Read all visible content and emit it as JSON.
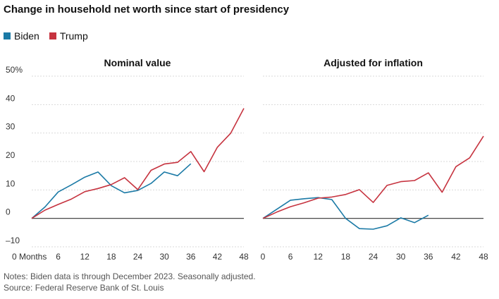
{
  "title": "Change in household net worth since start of presidency",
  "legend": [
    {
      "name": "Biden",
      "color": "#1b7aa6"
    },
    {
      "name": "Trump",
      "color": "#c6333f"
    }
  ],
  "notes": "Notes: Biden data is through December 2023. Seasonally adjusted.",
  "source": "Source: Federal Reserve Bank of St. Louis",
  "chart_data": [
    {
      "type": "line",
      "title": "Nominal value",
      "xlabel": "",
      "ylabel": "",
      "x_ticks": [
        "0 Months",
        "6",
        "12",
        "18",
        "24",
        "30",
        "36",
        "42",
        "48"
      ],
      "y_ticks": [
        "50%",
        "40",
        "30",
        "20",
        "10",
        "0",
        "–10"
      ],
      "xlim": [
        0,
        48
      ],
      "ylim": [
        -10,
        50
      ],
      "series": [
        {
          "name": "Biden",
          "color": "#1b7aa6",
          "x": [
            0,
            3,
            6,
            9,
            12,
            15,
            18,
            21,
            24,
            27,
            30,
            33,
            36
          ],
          "y": [
            0,
            4,
            9.3,
            11.8,
            14.5,
            16.3,
            11.5,
            9,
            9.8,
            12.3,
            16.3,
            15,
            19.2
          ]
        },
        {
          "name": "Trump",
          "color": "#c6333f",
          "x": [
            0,
            3,
            6,
            9,
            12,
            15,
            18,
            21,
            24,
            27,
            30,
            33,
            36,
            39,
            42,
            45,
            48
          ],
          "y": [
            0,
            2.9,
            4.9,
            6.8,
            9.4,
            10.5,
            11.9,
            14.3,
            10.1,
            16.9,
            19.1,
            19.7,
            23.5,
            16.4,
            25,
            29.9,
            38.7
          ]
        }
      ]
    },
    {
      "type": "line",
      "title": "Adjusted for inflation",
      "xlabel": "",
      "ylabel": "",
      "x_ticks": [
        "0",
        "6",
        "12",
        "18",
        "24",
        "30",
        "36",
        "42",
        "48"
      ],
      "xlim": [
        0,
        48
      ],
      "ylim": [
        -10,
        50
      ],
      "series": [
        {
          "name": "Biden",
          "color": "#1b7aa6",
          "x": [
            0,
            3,
            6,
            9,
            12,
            15,
            18,
            21,
            24,
            27,
            30,
            33,
            36
          ],
          "y": [
            0,
            3.2,
            6.4,
            6.9,
            7.3,
            6.6,
            0,
            -3.6,
            -3.8,
            -2.6,
            0.2,
            -1.5,
            1.1
          ]
        },
        {
          "name": "Trump",
          "color": "#c6333f",
          "x": [
            0,
            3,
            6,
            9,
            12,
            15,
            18,
            21,
            24,
            27,
            30,
            33,
            36,
            39,
            42,
            45,
            48
          ],
          "y": [
            0,
            2.2,
            4.1,
            5.5,
            7.1,
            7.5,
            8.4,
            10.1,
            5.6,
            11.6,
            12.9,
            13.3,
            16,
            9.2,
            18.2,
            21.3,
            28.9
          ]
        }
      ]
    }
  ]
}
